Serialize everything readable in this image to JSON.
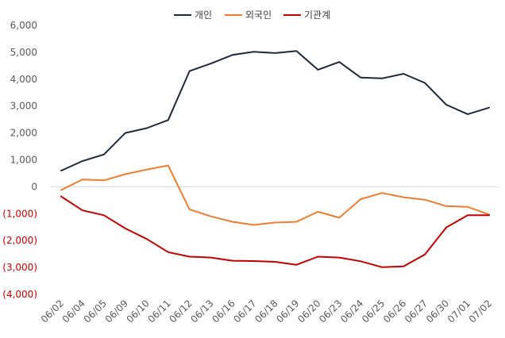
{
  "chart_data": {
    "type": "line",
    "categories": [
      "06/02",
      "06/04",
      "06/05",
      "06/09",
      "06/10",
      "06/11",
      "06/12",
      "06/13",
      "06/16",
      "06/17",
      "06/18",
      "06/19",
      "06/20",
      "06/23",
      "06/24",
      "06/25",
      "06/26",
      "06/27",
      "06/30",
      "07/01",
      "07/02"
    ],
    "y_ticks": [
      {
        "value": 6000,
        "label": "6,000"
      },
      {
        "value": 5000,
        "label": "5,000"
      },
      {
        "value": 4000,
        "label": "4,000"
      },
      {
        "value": 3000,
        "label": "3,000"
      },
      {
        "value": 2000,
        "label": "2,000"
      },
      {
        "value": 1000,
        "label": "1,000"
      },
      {
        "value": 0,
        "label": "0"
      },
      {
        "value": -1000,
        "label": "(1,000)"
      },
      {
        "value": -2000,
        "label": "(2,000)"
      },
      {
        "value": -3000,
        "label": "(3,000)"
      },
      {
        "value": -4000,
        "label": "(4,000)"
      }
    ],
    "ylim": [
      -4000,
      6000
    ],
    "grid": false,
    "legend_position": "top-center",
    "negative_tick_color": "#c00000",
    "series": [
      {
        "name": "개인",
        "color": "#1f2937",
        "values": [
          600,
          960,
          1200,
          2000,
          2180,
          2480,
          4300,
          4580,
          4900,
          5020,
          4970,
          5050,
          4350,
          4640,
          4060,
          4030,
          4200,
          3860,
          3050,
          2700,
          2940
        ]
      },
      {
        "name": "외국인",
        "color": "#ed7d31",
        "values": [
          -120,
          270,
          240,
          470,
          640,
          790,
          -840,
          -1100,
          -1300,
          -1420,
          -1330,
          -1300,
          -930,
          -1150,
          -460,
          -230,
          -390,
          -480,
          -720,
          -750,
          -1030
        ]
      },
      {
        "name": "기관계",
        "color": "#c00000",
        "values": [
          -360,
          -880,
          -1060,
          -1550,
          -1940,
          -2430,
          -2600,
          -2630,
          -2750,
          -2760,
          -2790,
          -2900,
          -2600,
          -2630,
          -2770,
          -2990,
          -2960,
          -2520,
          -1510,
          -1060,
          -1060
        ]
      }
    ]
  }
}
